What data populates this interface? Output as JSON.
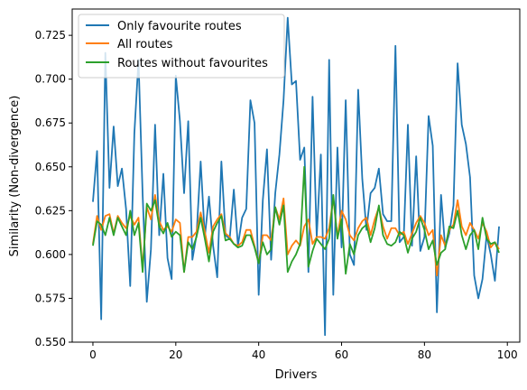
{
  "chart_data": {
    "type": "line",
    "xlabel": "Drivers",
    "ylabel": "Similarity (Non-divergence)",
    "xlim": [
      -5,
      103
    ],
    "ylim": [
      0.55,
      0.74
    ],
    "xticks": [
      0,
      20,
      40,
      60,
      80,
      100
    ],
    "yticks": [
      0.55,
      0.575,
      0.6,
      0.625,
      0.65,
      0.675,
      0.7,
      0.725
    ],
    "ytick_labels": [
      "0.550",
      "0.575",
      "0.600",
      "0.625",
      "0.650",
      "0.675",
      "0.700",
      "0.725"
    ],
    "grid": false,
    "legend_position": "upper-left",
    "x": [
      0,
      1,
      2,
      3,
      4,
      5,
      6,
      7,
      8,
      9,
      10,
      11,
      12,
      13,
      14,
      15,
      16,
      17,
      18,
      19,
      20,
      21,
      22,
      23,
      24,
      25,
      26,
      27,
      28,
      29,
      30,
      31,
      32,
      33,
      34,
      35,
      36,
      37,
      38,
      39,
      40,
      41,
      42,
      43,
      44,
      45,
      46,
      47,
      48,
      49,
      50,
      51,
      52,
      53,
      54,
      55,
      56,
      57,
      58,
      59,
      60,
      61,
      62,
      63,
      64,
      65,
      66,
      67,
      68,
      69,
      70,
      71,
      72,
      73,
      74,
      75,
      76,
      77,
      78,
      79,
      80,
      81,
      82,
      83,
      84,
      85,
      86,
      87,
      88,
      89,
      90,
      91,
      92,
      93,
      94,
      95,
      96,
      97,
      98
    ],
    "series": [
      {
        "name": "Only favourite routes",
        "color": "#1f77b4",
        "values": [
          0.63,
          0.659,
          0.563,
          0.715,
          0.638,
          0.673,
          0.639,
          0.649,
          0.626,
          0.582,
          0.669,
          0.711,
          0.634,
          0.573,
          0.603,
          0.674,
          0.611,
          0.646,
          0.598,
          0.586,
          0.702,
          0.676,
          0.635,
          0.676,
          0.597,
          0.611,
          0.653,
          0.61,
          0.633,
          0.605,
          0.587,
          0.653,
          0.611,
          0.609,
          0.637,
          0.605,
          0.621,
          0.626,
          0.688,
          0.675,
          0.577,
          0.631,
          0.66,
          0.597,
          0.635,
          0.657,
          0.688,
          0.735,
          0.697,
          0.699,
          0.654,
          0.661,
          0.59,
          0.69,
          0.61,
          0.657,
          0.554,
          0.711,
          0.577,
          0.661,
          0.604,
          0.688,
          0.6,
          0.594,
          0.694,
          0.643,
          0.614,
          0.635,
          0.638,
          0.649,
          0.623,
          0.619,
          0.619,
          0.719,
          0.607,
          0.61,
          0.674,
          0.605,
          0.656,
          0.602,
          0.61,
          0.679,
          0.662,
          0.567,
          0.634,
          0.604,
          0.612,
          0.628,
          0.709,
          0.674,
          0.663,
          0.644,
          0.588,
          0.575,
          0.586,
          0.611,
          0.6,
          0.585,
          0.616
        ]
      },
      {
        "name": "All routes",
        "color": "#ff7f0e",
        "values": [
          0.606,
          0.622,
          0.614,
          0.622,
          0.623,
          0.612,
          0.622,
          0.618,
          0.615,
          0.622,
          0.617,
          0.621,
          0.592,
          0.627,
          0.62,
          0.634,
          0.619,
          0.614,
          0.616,
          0.613,
          0.62,
          0.618,
          0.59,
          0.61,
          0.61,
          0.613,
          0.624,
          0.613,
          0.601,
          0.616,
          0.62,
          0.623,
          0.612,
          0.61,
          0.606,
          0.605,
          0.607,
          0.614,
          0.614,
          0.605,
          0.595,
          0.611,
          0.611,
          0.608,
          0.627,
          0.62,
          0.632,
          0.6,
          0.605,
          0.608,
          0.605,
          0.616,
          0.62,
          0.606,
          0.61,
          0.61,
          0.609,
          0.615,
          0.632,
          0.61,
          0.625,
          0.62,
          0.611,
          0.608,
          0.615,
          0.619,
          0.621,
          0.611,
          0.62,
          0.627,
          0.616,
          0.609,
          0.615,
          0.615,
          0.611,
          0.613,
          0.606,
          0.612,
          0.618,
          0.622,
          0.618,
          0.611,
          0.614,
          0.588,
          0.611,
          0.605,
          0.614,
          0.617,
          0.631,
          0.616,
          0.611,
          0.618,
          0.614,
          0.609,
          0.618,
          0.613,
          0.604,
          0.607,
          0.603
        ]
      },
      {
        "name": "Routes without favourites",
        "color": "#2ca02c",
        "values": [
          0.605,
          0.619,
          0.617,
          0.611,
          0.621,
          0.611,
          0.621,
          0.616,
          0.611,
          0.625,
          0.611,
          0.618,
          0.59,
          0.629,
          0.625,
          0.631,
          0.616,
          0.612,
          0.618,
          0.61,
          0.613,
          0.611,
          0.59,
          0.607,
          0.603,
          0.61,
          0.621,
          0.609,
          0.596,
          0.613,
          0.618,
          0.622,
          0.608,
          0.609,
          0.606,
          0.604,
          0.605,
          0.611,
          0.611,
          0.604,
          0.595,
          0.607,
          0.6,
          0.603,
          0.627,
          0.617,
          0.628,
          0.59,
          0.596,
          0.6,
          0.606,
          0.65,
          0.593,
          0.602,
          0.609,
          0.606,
          0.603,
          0.609,
          0.634,
          0.609,
          0.62,
          0.589,
          0.606,
          0.6,
          0.611,
          0.615,
          0.617,
          0.607,
          0.615,
          0.628,
          0.611,
          0.606,
          0.605,
          0.607,
          0.613,
          0.611,
          0.601,
          0.609,
          0.613,
          0.621,
          0.614,
          0.603,
          0.608,
          0.594,
          0.601,
          0.603,
          0.616,
          0.615,
          0.625,
          0.611,
          0.603,
          0.611,
          0.614,
          0.603,
          0.621,
          0.609,
          0.606,
          0.607,
          0.601
        ]
      }
    ]
  }
}
